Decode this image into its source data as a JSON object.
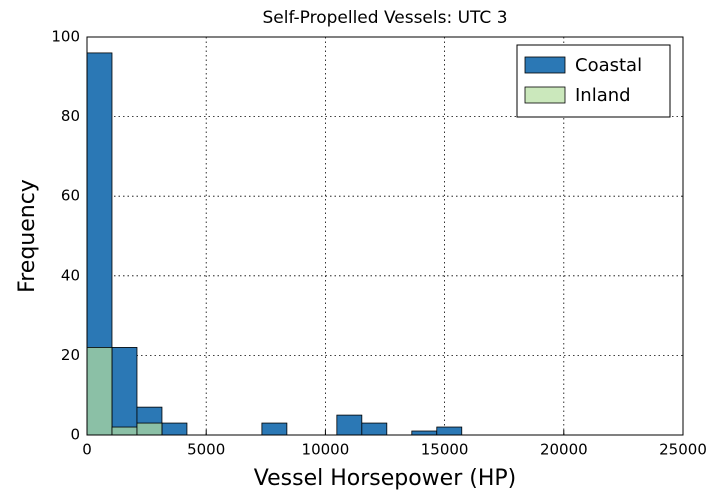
{
  "chart_data": {
    "type": "histogram",
    "title": "Self-Propelled Vessels: UTC 3",
    "xlabel": "Vessel Horsepower (HP)",
    "ylabel": "Frequency",
    "bins": [
      0,
      1048,
      2096,
      3144,
      4192,
      5240,
      6288,
      7336,
      8384,
      9432,
      10480,
      11528,
      12576,
      13624,
      14672,
      15720
    ],
    "series": [
      {
        "name": "Coastal",
        "color": "#2b78b5",
        "alpha": 1,
        "values": [
          96,
          22,
          7,
          3,
          0,
          0,
          0,
          3,
          0,
          0,
          5,
          3,
          0,
          1,
          2
        ]
      },
      {
        "name": "Inland",
        "color": "#b5dea0",
        "alpha": 0.7,
        "values": [
          22,
          2,
          3,
          0,
          0,
          0,
          0,
          0,
          0,
          0,
          0,
          0,
          0,
          0,
          0
        ]
      }
    ],
    "xlim": [
      0,
      25000
    ],
    "xticks": [
      0,
      5000,
      10000,
      15000,
      20000,
      25000
    ],
    "ylim": [
      0,
      100
    ],
    "yticks": [
      0,
      20,
      40,
      60,
      80,
      100
    ],
    "grid": true,
    "legend": "upper right"
  }
}
